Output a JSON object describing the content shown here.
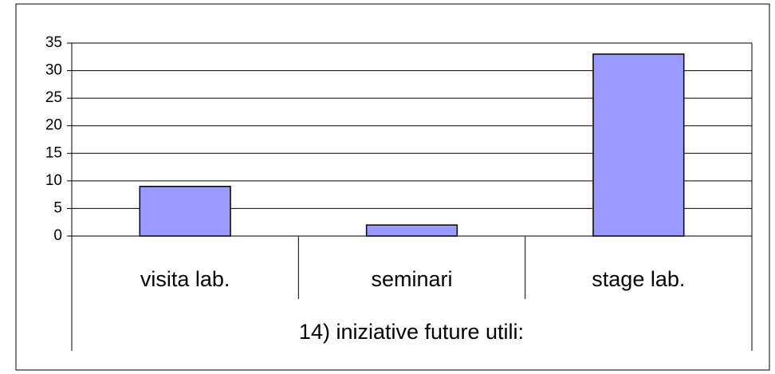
{
  "chart_data": {
    "type": "bar",
    "x_label": "14) iniziative future utili:",
    "categories": [
      "visita lab.",
      "seminari",
      "stage lab."
    ],
    "values": [
      9,
      2,
      33
    ],
    "color": "#9999ff",
    "ylim": [
      0,
      35
    ],
    "yticks": [
      0,
      5,
      10,
      15,
      20,
      25,
      30,
      35
    ],
    "grid": true
  }
}
